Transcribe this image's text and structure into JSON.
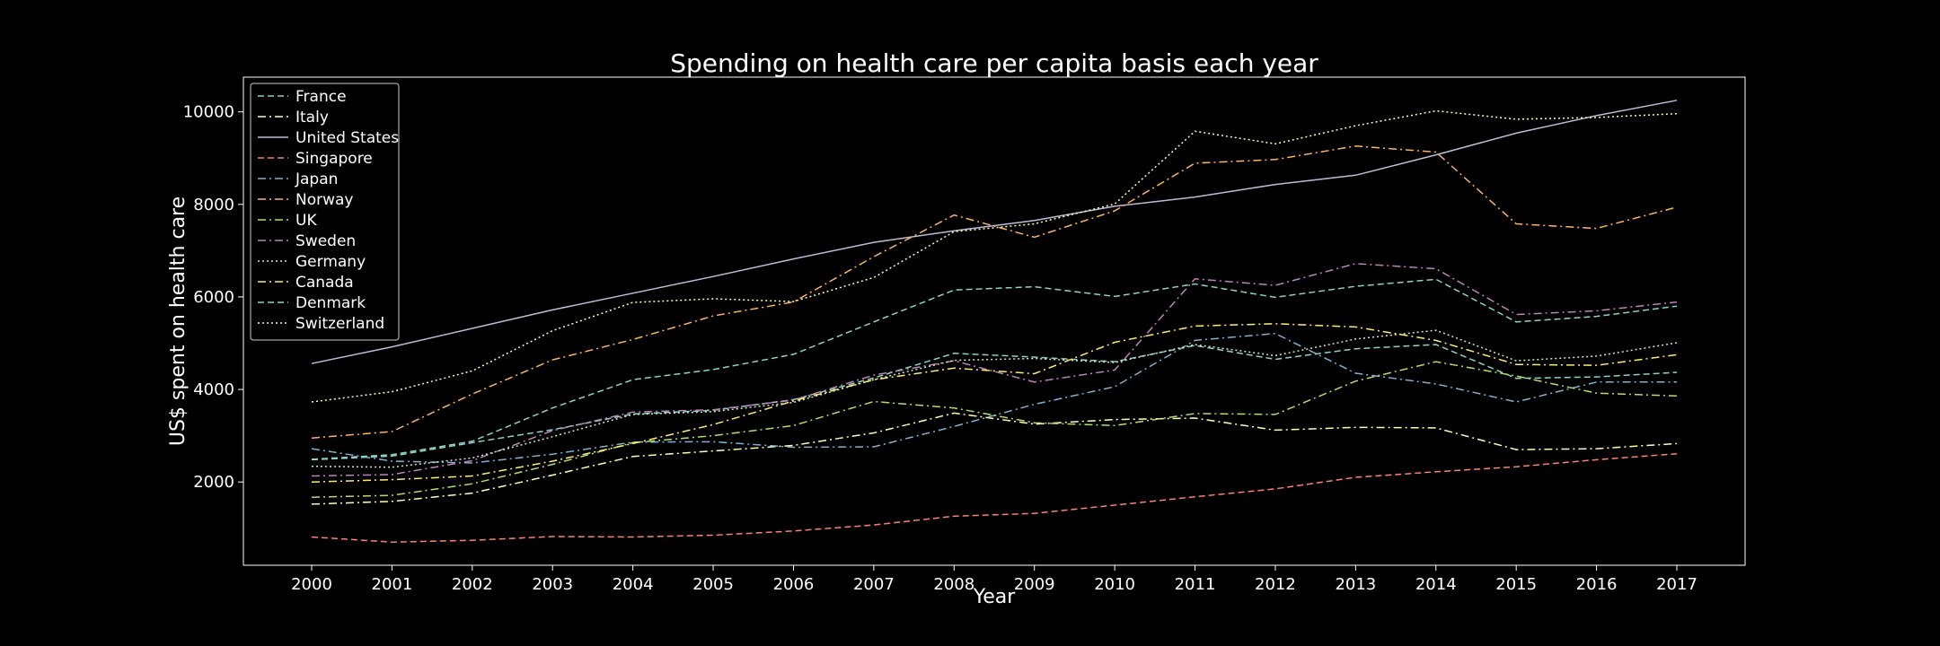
{
  "chart_data": {
    "type": "line",
    "title": "Spending on health care per capita basis each year",
    "xlabel": "Year",
    "ylabel": "US$ spent on health care",
    "x": [
      2000,
      2001,
      2002,
      2003,
      2004,
      2005,
      2006,
      2007,
      2008,
      2009,
      2010,
      2011,
      2012,
      2013,
      2014,
      2015,
      2016,
      2017
    ],
    "xlim": [
      1999.15,
      2017.85
    ],
    "ylim": [
      200,
      10750
    ],
    "yticks": [
      2000,
      4000,
      6000,
      8000,
      10000
    ],
    "grid": false,
    "legend_position": "upper-left",
    "series": [
      {
        "name": "France",
        "color": "#8dd3c7",
        "dash": "dashed",
        "values": [
          2480,
          2560,
          2850,
          3130,
          3470,
          3550,
          3780,
          4250,
          4780,
          4700,
          4600,
          4950,
          4650,
          4880,
          4970,
          4240,
          4270,
          4370
        ]
      },
      {
        "name": "Italy",
        "color": "#feffb3",
        "dash": "dashdot",
        "values": [
          1520,
          1580,
          1760,
          2150,
          2550,
          2670,
          2790,
          3060,
          3490,
          3250,
          3350,
          3380,
          3120,
          3180,
          3170,
          2700,
          2720,
          2830
        ]
      },
      {
        "name": "United States",
        "color": "#bfbbd9",
        "dash": "solid",
        "values": [
          4560,
          4920,
          5320,
          5720,
          6080,
          6440,
          6820,
          7180,
          7430,
          7650,
          7960,
          8160,
          8430,
          8630,
          9070,
          9540,
          9920,
          10250
        ]
      },
      {
        "name": "Singapore",
        "color": "#fa8174",
        "dash": "dashed",
        "values": [
          810,
          700,
          740,
          820,
          810,
          850,
          940,
          1070,
          1260,
          1320,
          1500,
          1680,
          1850,
          2100,
          2220,
          2330,
          2480,
          2610
        ]
      },
      {
        "name": "Japan",
        "color": "#81b1d2",
        "dash": "dashdot",
        "values": [
          2720,
          2450,
          2410,
          2600,
          2860,
          2870,
          2750,
          2760,
          3200,
          3680,
          4060,
          5060,
          5210,
          4350,
          4120,
          3730,
          4160,
          4160
        ]
      },
      {
        "name": "Norway",
        "color": "#fdb462",
        "dash": "dashdot",
        "values": [
          2950,
          3090,
          3900,
          4640,
          5080,
          5590,
          5890,
          6870,
          7770,
          7290,
          7860,
          8890,
          8970,
          9260,
          9130,
          7580,
          7480,
          7940
        ]
      },
      {
        "name": "UK",
        "color": "#b3de69",
        "dash": "dashdot",
        "values": [
          1670,
          1710,
          1960,
          2380,
          2850,
          3000,
          3220,
          3740,
          3600,
          3280,
          3220,
          3480,
          3460,
          4180,
          4600,
          4290,
          3920,
          3860
        ]
      },
      {
        "name": "Sweden",
        "color": "#bc82bd",
        "dash": "dashdot",
        "values": [
          2130,
          2160,
          2460,
          3110,
          3510,
          3560,
          3770,
          4310,
          4620,
          4160,
          4420,
          6390,
          6250,
          6720,
          6610,
          5620,
          5700,
          5890
        ]
      },
      {
        "name": "Germany",
        "color": "#ccebc4",
        "dash": "dotted",
        "values": [
          2340,
          2320,
          2520,
          2980,
          3460,
          3520,
          3720,
          4210,
          4630,
          4670,
          4580,
          4970,
          4730,
          5090,
          5280,
          4620,
          4720,
          5010
        ]
      },
      {
        "name": "Canada",
        "color": "#ffed6f",
        "dash": "dashdot",
        "values": [
          2000,
          2050,
          2130,
          2450,
          2830,
          3240,
          3750,
          4210,
          4460,
          4340,
          5020,
          5370,
          5420,
          5350,
          5060,
          4540,
          4520,
          4750
        ]
      },
      {
        "name": "Denmark",
        "color": "#8dd3c7",
        "dash": "dashed",
        "values": [
          2490,
          2590,
          2880,
          3600,
          4210,
          4430,
          4760,
          5460,
          6150,
          6220,
          6010,
          6280,
          5990,
          6230,
          6380,
          5460,
          5580,
          5800
        ]
      },
      {
        "name": "Switzerland",
        "color": "#feffb3",
        "dash": "dotted",
        "values": [
          3730,
          3950,
          4400,
          5270,
          5880,
          5960,
          5900,
          6420,
          7410,
          7580,
          8010,
          9580,
          9310,
          9700,
          10020,
          9840,
          9880,
          9960
        ]
      }
    ]
  }
}
